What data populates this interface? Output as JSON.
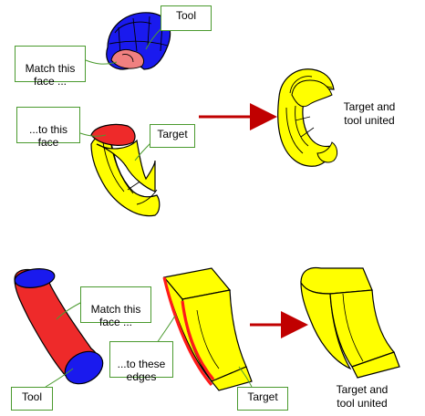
{
  "colors": {
    "tool_body": "#1a1aee",
    "match_face": "#ee2a2a",
    "matched_face_light": "#f08080",
    "target_body": "#ffff00",
    "edge_highlight": "#ff1a1a",
    "outline": "#000000",
    "callout_border": "#4a9a2e",
    "arrow": "#c00000"
  },
  "example_one": {
    "tool_label": "Tool",
    "match_face_label": "Match this\nface ...",
    "to_face_label": "...to this\nface",
    "target_label": "Target",
    "result_caption": "Target and\ntool united"
  },
  "example_two": {
    "match_face_label": "Match this\nface ...",
    "tool_label": "Tool",
    "to_edges_label": "...to these\nedges",
    "target_label": "Target",
    "result_caption": "Target and\ntool united"
  }
}
